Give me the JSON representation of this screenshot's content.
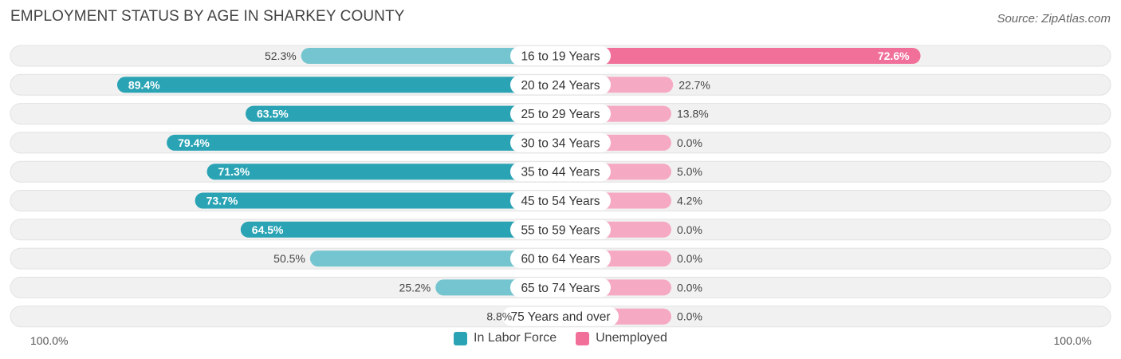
{
  "title": "EMPLOYMENT STATUS BY AGE IN SHARKEY COUNTY",
  "source": "Source: ZipAtlas.com",
  "legend": {
    "labor": "In Labor Force",
    "unemployed": "Unemployed"
  },
  "axis": {
    "left": "100.0%",
    "right": "100.0%"
  },
  "colors": {
    "labor_strong": "#2aa3b4",
    "labor_light": "#74c5cf",
    "unemp_strong": "#f0709a",
    "unemp_light": "#f6a9c2",
    "row_bg": "#f1f1f1"
  },
  "chart_data": {
    "type": "bar",
    "orientation": "diverging-horizontal",
    "title": "EMPLOYMENT STATUS BY AGE IN SHARKEY COUNTY",
    "categories": [
      "16 to 19 Years",
      "20 to 24 Years",
      "25 to 29 Years",
      "30 to 34 Years",
      "35 to 44 Years",
      "45 to 54 Years",
      "55 to 59 Years",
      "60 to 64 Years",
      "65 to 74 Years",
      "75 Years and over"
    ],
    "series": [
      {
        "name": "In Labor Force",
        "values": [
          52.3,
          89.4,
          63.5,
          79.4,
          71.3,
          73.7,
          64.5,
          50.5,
          25.2,
          8.8
        ],
        "labels": [
          "52.3%",
          "89.4%",
          "63.5%",
          "79.4%",
          "71.3%",
          "73.7%",
          "64.5%",
          "50.5%",
          "25.2%",
          "8.8%"
        ]
      },
      {
        "name": "Unemployed",
        "values": [
          72.6,
          22.7,
          13.8,
          0.0,
          5.0,
          4.2,
          0.0,
          0.0,
          0.0,
          0.0
        ],
        "labels": [
          "72.6%",
          "22.7%",
          "13.8%",
          "0.0%",
          "5.0%",
          "4.2%",
          "0.0%",
          "0.0%",
          "0.0%",
          "0.0%"
        ]
      }
    ],
    "xlim": [
      -100,
      100
    ]
  }
}
